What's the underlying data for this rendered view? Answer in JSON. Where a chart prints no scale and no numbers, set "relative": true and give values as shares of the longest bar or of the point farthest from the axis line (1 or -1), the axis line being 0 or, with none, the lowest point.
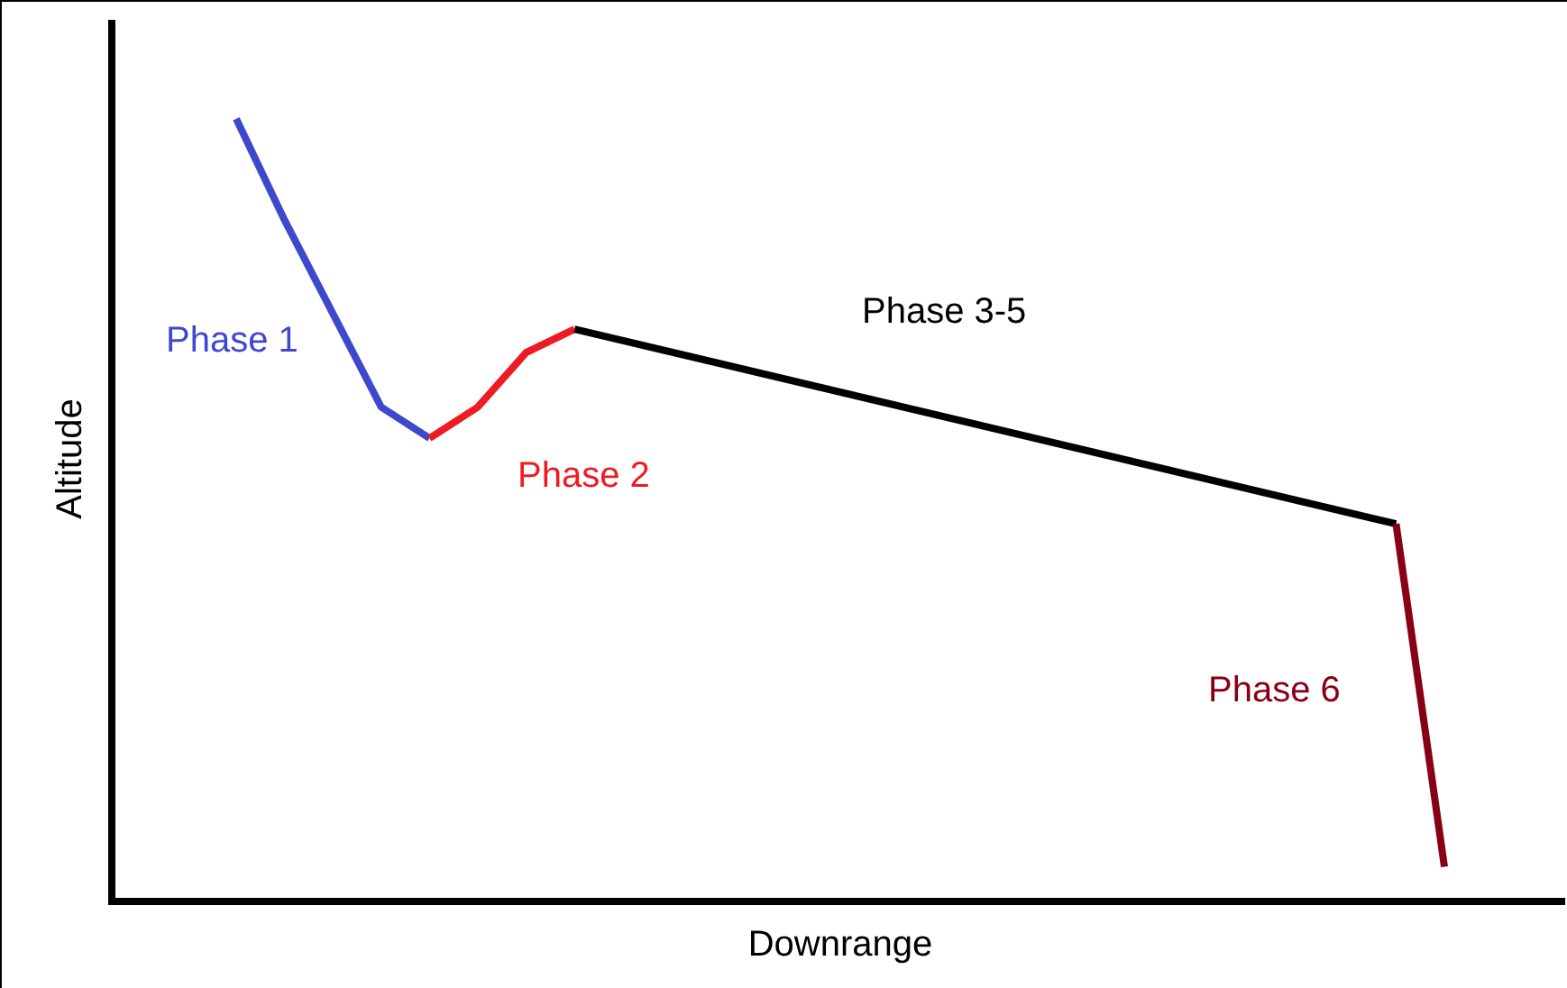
{
  "chart_data": {
    "type": "line",
    "relative": true,
    "xlabel": "Downrange",
    "ylabel": "Altitude",
    "legend": false,
    "marker": "none",
    "line_style": "solid",
    "categories": [
      null,
      null,
      null,
      null,
      null,
      null,
      null,
      null,
      null,
      null,
      null,
      null,
      null,
      null,
      null,
      null,
      null,
      null,
      null,
      null,
      null,
      null,
      null,
      null,
      null,
      null,
      null,
      null,
      null,
      null
    ],
    "series": [
      {
        "name": "Phase 1",
        "color": "#3f48cc",
        "values": [
          null,
          null,
          1.0,
          0.87,
          0.75,
          0.63,
          0.59,
          null,
          null,
          null,
          null,
          null,
          null,
          null,
          null,
          null,
          null,
          null,
          null,
          null,
          null,
          null,
          null,
          null,
          null,
          null,
          null,
          null,
          null,
          null
        ]
      },
      {
        "name": "Phase 2",
        "color": "#ed1c24",
        "values": [
          null,
          null,
          null,
          null,
          null,
          null,
          0.59,
          0.63,
          0.7,
          0.73,
          null,
          null,
          null,
          null,
          null,
          null,
          null,
          null,
          null,
          null,
          null,
          null,
          null,
          null,
          null,
          null,
          null,
          null,
          null,
          null
        ]
      },
      {
        "name": "Phase 3-5",
        "color": "#000000",
        "values": [
          null,
          null,
          null,
          null,
          null,
          null,
          null,
          null,
          null,
          0.73,
          null,
          null,
          null,
          null,
          null,
          null,
          null,
          null,
          null,
          null,
          null,
          null,
          null,
          null,
          null,
          null,
          0.48,
          null,
          null,
          null
        ]
      },
      {
        "name": "Phase 6",
        "color": "#880015",
        "values": [
          null,
          null,
          null,
          null,
          null,
          null,
          null,
          null,
          null,
          null,
          null,
          null,
          null,
          null,
          null,
          null,
          null,
          null,
          null,
          null,
          null,
          null,
          null,
          null,
          null,
          null,
          0.48,
          0.04,
          null,
          null
        ]
      }
    ]
  }
}
